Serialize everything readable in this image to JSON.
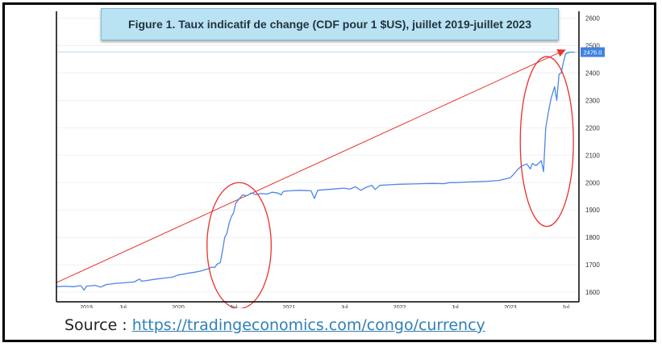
{
  "chart_data": {
    "type": "line",
    "title": "Figure 1. Taux indicatif de change (CDF pour 1 $US), juillet 2019-juillet 2023",
    "y_ticks": [
      1600,
      1700,
      1800,
      1900,
      2000,
      2100,
      2200,
      2300,
      2400,
      2500,
      2600
    ],
    "ylim": [
      1565,
      2625
    ],
    "x_ticks": [
      {
        "label": "2019",
        "t": 2019.17
      },
      {
        "label": "Jul",
        "t": 2019.5
      },
      {
        "label": "2020",
        "t": 2020.0
      },
      {
        "label": "Jul",
        "t": 2020.5
      },
      {
        "label": "2021",
        "t": 2021.0
      },
      {
        "label": "Jul",
        "t": 2021.5
      },
      {
        "label": "2022",
        "t": 2022.0
      },
      {
        "label": "Jul",
        "t": 2022.5
      },
      {
        "label": "2023",
        "t": 2023.0
      },
      {
        "label": "Jul",
        "t": 2023.5
      }
    ],
    "xlim": [
      2018.9,
      2023.62
    ],
    "last_value_label": "2476.0",
    "series": [
      {
        "color": "#4f86e6",
        "points": [
          [
            2018.9,
            1620
          ],
          [
            2018.98,
            1622
          ],
          [
            2019.05,
            1620
          ],
          [
            2019.12,
            1624
          ],
          [
            2019.15,
            1608
          ],
          [
            2019.17,
            1622
          ],
          [
            2019.25,
            1625
          ],
          [
            2019.3,
            1619
          ],
          [
            2019.35,
            1628
          ],
          [
            2019.4,
            1630
          ],
          [
            2019.45,
            1633
          ],
          [
            2019.5,
            1634
          ],
          [
            2019.55,
            1636
          ],
          [
            2019.6,
            1637
          ],
          [
            2019.65,
            1648
          ],
          [
            2019.67,
            1640
          ],
          [
            2019.72,
            1643
          ],
          [
            2019.8,
            1648
          ],
          [
            2019.88,
            1652
          ],
          [
            2019.95,
            1655
          ],
          [
            2020.0,
            1663
          ],
          [
            2020.05,
            1666
          ],
          [
            2020.1,
            1670
          ],
          [
            2020.15,
            1673
          ],
          [
            2020.2,
            1677
          ],
          [
            2020.25,
            1683
          ],
          [
            2020.28,
            1686
          ],
          [
            2020.3,
            1692
          ],
          [
            2020.33,
            1690
          ],
          [
            2020.35,
            1702
          ],
          [
            2020.38,
            1708
          ],
          [
            2020.4,
            1750
          ],
          [
            2020.42,
            1800
          ],
          [
            2020.44,
            1815
          ],
          [
            2020.46,
            1852
          ],
          [
            2020.48,
            1875
          ],
          [
            2020.5,
            1890
          ],
          [
            2020.52,
            1925
          ],
          [
            2020.55,
            1940
          ],
          [
            2020.58,
            1955
          ],
          [
            2020.62,
            1952
          ],
          [
            2020.66,
            1962
          ],
          [
            2020.7,
            1956
          ],
          [
            2020.75,
            1960
          ],
          [
            2020.8,
            1958
          ],
          [
            2020.85,
            1965
          ],
          [
            2020.9,
            1962
          ],
          [
            2020.93,
            1955
          ],
          [
            2020.95,
            1968
          ],
          [
            2021.0,
            1970
          ],
          [
            2021.1,
            1972
          ],
          [
            2021.2,
            1970
          ],
          [
            2021.23,
            1942
          ],
          [
            2021.26,
            1972
          ],
          [
            2021.35,
            1975
          ],
          [
            2021.45,
            1978
          ],
          [
            2021.5,
            1980
          ],
          [
            2021.55,
            1976
          ],
          [
            2021.6,
            1985
          ],
          [
            2021.65,
            1972
          ],
          [
            2021.7,
            1983
          ],
          [
            2021.75,
            1990
          ],
          [
            2021.78,
            1975
          ],
          [
            2021.82,
            1990
          ],
          [
            2021.9,
            1992
          ],
          [
            2022.0,
            1994
          ],
          [
            2022.1,
            1995
          ],
          [
            2022.2,
            1996
          ],
          [
            2022.3,
            1997
          ],
          [
            2022.4,
            1996
          ],
          [
            2022.45,
            2000
          ],
          [
            2022.5,
            2000
          ],
          [
            2022.6,
            2002
          ],
          [
            2022.7,
            2003
          ],
          [
            2022.8,
            2005
          ],
          [
            2022.9,
            2008
          ],
          [
            2023.0,
            2018
          ],
          [
            2023.03,
            2030
          ],
          [
            2023.06,
            2045
          ],
          [
            2023.1,
            2060
          ],
          [
            2023.15,
            2068
          ],
          [
            2023.18,
            2050
          ],
          [
            2023.2,
            2070
          ],
          [
            2023.23,
            2062
          ],
          [
            2023.25,
            2068
          ],
          [
            2023.28,
            2080
          ],
          [
            2023.3,
            2040
          ],
          [
            2023.32,
            2200
          ],
          [
            2023.35,
            2270
          ],
          [
            2023.37,
            2310
          ],
          [
            2023.4,
            2350
          ],
          [
            2023.42,
            2300
          ],
          [
            2023.44,
            2395
          ],
          [
            2023.46,
            2400
          ],
          [
            2023.48,
            2440
          ],
          [
            2023.5,
            2470
          ],
          [
            2023.54,
            2476
          ],
          [
            2023.58,
            2476
          ]
        ]
      }
    ],
    "trend_line": {
      "color": "#e8322c",
      "from": [
        2018.9,
        1635
      ],
      "to": [
        2023.5,
        2485
      ]
    },
    "ellipses": [
      {
        "cx_t": 2020.55,
        "cy_v": 1770,
        "rx_t": 0.29,
        "ry_v": 230
      },
      {
        "cx_t": 2023.33,
        "cy_v": 2150,
        "rx_t": 0.24,
        "ry_v": 310
      }
    ],
    "colors": {
      "title_bg": "#b9e3f2",
      "axis": "#000000",
      "value_badge": "#3f82e0"
    }
  },
  "source": {
    "label": "Source :",
    "url": "https://tradingeconomics.com/congo/currency"
  }
}
